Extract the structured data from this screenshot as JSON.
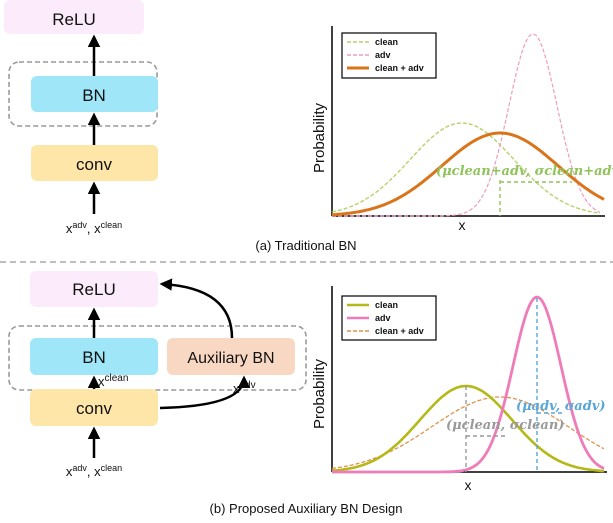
{
  "panel_a": {
    "blocks": {
      "relu": "ReLU",
      "bn": "BN",
      "conv": "conv"
    },
    "input": {
      "base1": "x",
      "sup1": "adv",
      "sep": ", ",
      "base2": "x",
      "sup2": "clean"
    },
    "chart": {
      "ylabel": "Probability",
      "xlabel": "x",
      "legend": [
        "clean",
        "adv",
        "clean + adv"
      ],
      "annotation": "(μclean+adv, σclean+adv)"
    },
    "caption": "(a) Traditional BN"
  },
  "panel_b": {
    "blocks": {
      "relu": "ReLU",
      "bn": "BN",
      "aux_bn": "Auxiliary BN",
      "conv": "conv"
    },
    "branch_labels": {
      "clean": {
        "base": "x",
        "sup": "clean"
      },
      "adv": {
        "base": "x",
        "sup": "adv"
      }
    },
    "input": {
      "base1": "x",
      "sup1": "adv",
      "sep": ", ",
      "base2": "x",
      "sup2": "clean"
    },
    "chart": {
      "ylabel": "Probability",
      "xlabel": "x",
      "legend": [
        "clean",
        "adv",
        "clean + adv"
      ],
      "annotation_adv": "(μadv, σadv)",
      "annotation_clean": "(μclean, σclean)"
    },
    "caption": "(b) Proposed Auxiliary BN Design"
  },
  "colors": {
    "relu_fill": "#fcebfa",
    "bn_fill": "#9ee6f8",
    "conv_fill": "#fde6a8",
    "aux_bn_fill": "#f9d8c3",
    "traditional_clean": "#b5d26a",
    "traditional_adv": "#f19bc0",
    "traditional_mix": "#d9741a",
    "traditional_annotation": "#8fc45a",
    "proposed_clean": "#b5b819",
    "proposed_adv": "#ef7cb8",
    "proposed_mix": "#e0914a",
    "proposed_adv_annotation": "#5aa6d8",
    "proposed_clean_annotation": "#999999"
  }
}
